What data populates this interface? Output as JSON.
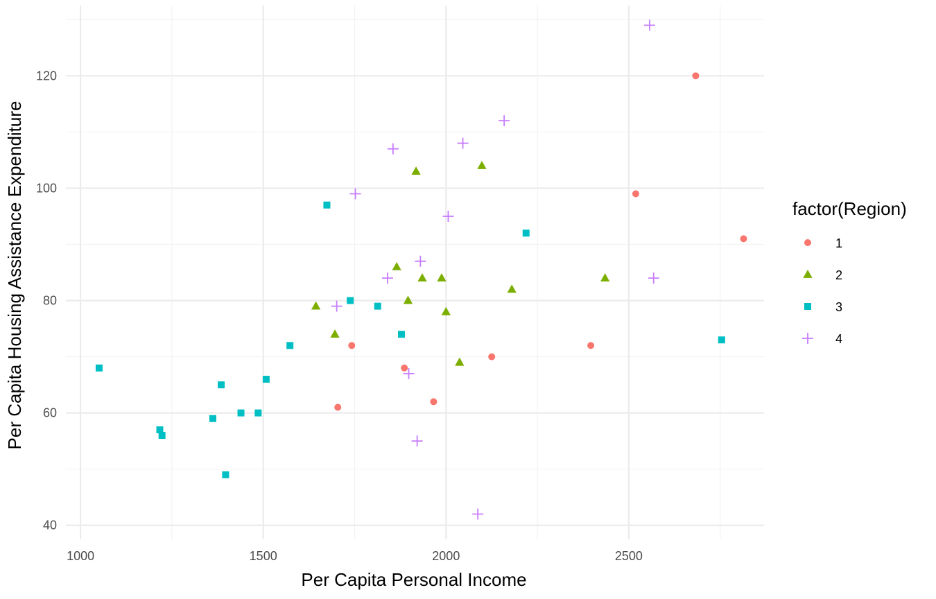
{
  "chart_data": {
    "type": "scatter",
    "xlabel": "Per Capita Personal Income",
    "ylabel": "Per Capita Housing Assistance Expenditure",
    "xlim": [
      960,
      2870
    ],
    "ylim": [
      37.5,
      132.5
    ],
    "x_ticks": [
      1000,
      1500,
      2000,
      2500
    ],
    "y_ticks": [
      40,
      60,
      80,
      100,
      120
    ],
    "x_tick_labels": [
      "1000",
      "1500",
      "2000",
      "2500"
    ],
    "y_tick_labels": [
      "40",
      "60",
      "80",
      "100",
      "120"
    ],
    "grid": true,
    "legend": {
      "title": "factor(Region)",
      "position": "right"
    },
    "series": [
      {
        "name": "1",
        "color": "#F8766D",
        "shape": "circle",
        "points": [
          [
            2683,
            120
          ],
          [
            2519,
            99
          ],
          [
            2814,
            91
          ],
          [
            1742,
            72
          ],
          [
            1886,
            68
          ],
          [
            2396,
            72
          ],
          [
            2125,
            70
          ],
          [
            1704,
            61
          ],
          [
            1966,
            62
          ]
        ]
      },
      {
        "name": "2",
        "color": "#7CAE00",
        "shape": "triangle",
        "points": [
          [
            1918,
            103
          ],
          [
            2098,
            104
          ],
          [
            1865,
            86
          ],
          [
            1935,
            84
          ],
          [
            1988,
            84
          ],
          [
            2435,
            84
          ],
          [
            1644,
            79
          ],
          [
            1896,
            80
          ],
          [
            2180,
            82
          ],
          [
            2000,
            78
          ],
          [
            1696,
            74
          ],
          [
            2037,
            69
          ]
        ]
      },
      {
        "name": "3",
        "color": "#00BFC4",
        "shape": "square",
        "points": [
          [
            1674,
            97
          ],
          [
            2219,
            92
          ],
          [
            1738,
            80
          ],
          [
            1813,
            79
          ],
          [
            1878,
            74
          ],
          [
            1573,
            72
          ],
          [
            2754,
            73
          ],
          [
            1051,
            68
          ],
          [
            1508,
            66
          ],
          [
            1385,
            65
          ],
          [
            1362,
            59
          ],
          [
            1439,
            60
          ],
          [
            1486,
            60
          ],
          [
            1217,
            57
          ],
          [
            1223,
            56
          ],
          [
            1397,
            49
          ]
        ]
      },
      {
        "name": "4",
        "color": "#C77CFF",
        "shape": "cross",
        "points": [
          [
            2557,
            129
          ],
          [
            2159,
            112
          ],
          [
            2046,
            108
          ],
          [
            1855,
            107
          ],
          [
            1752,
            99
          ],
          [
            2006,
            95
          ],
          [
            1930,
            87
          ],
          [
            1840,
            84
          ],
          [
            2568,
            84
          ],
          [
            1701,
            79
          ],
          [
            1898,
            67
          ],
          [
            1921,
            55
          ],
          [
            2087,
            42
          ]
        ]
      }
    ]
  }
}
